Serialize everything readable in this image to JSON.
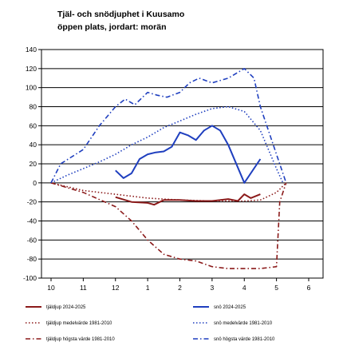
{
  "chart_data": {
    "type": "line",
    "title": "Tjäl- och snödjuphet i Kuusamo",
    "subtitle": "öppen plats, jordart: morän",
    "categories": [
      "10",
      "11",
      "12",
      "1",
      "2",
      "3",
      "4",
      "5",
      "6"
    ],
    "ylim": [
      -100,
      140
    ],
    "yticks": [
      140,
      120,
      100,
      80,
      60,
      40,
      20,
      0,
      -20,
      -40,
      -60,
      -80,
      -100
    ],
    "xlim": [
      0,
      8
    ],
    "grid": "horizontal",
    "legend_position": "bottom",
    "series": [
      {
        "name": "tjäldjup 2024-2025",
        "color": "#8b1a1a",
        "dash": "solid",
        "x": [
          2.0,
          2.5,
          3.0,
          3.2,
          3.5,
          4.0,
          4.5,
          5.0,
          5.5,
          5.8,
          6.0,
          6.2,
          6.5
        ],
        "y": [
          -15,
          -20,
          -21,
          -23,
          -18,
          -18,
          -19,
          -19,
          -17,
          -19,
          -12,
          -16,
          -12
        ]
      },
      {
        "name": "snö 2024-2025",
        "color": "#1f3fbf",
        "dash": "solid",
        "x": [
          2.0,
          2.25,
          2.5,
          2.75,
          3.0,
          3.25,
          3.5,
          3.75,
          4.0,
          4.25,
          4.5,
          4.75,
          5.0,
          5.25,
          5.5,
          6.0,
          6.5
        ],
        "y": [
          13,
          5,
          10,
          25,
          30,
          32,
          33,
          38,
          53,
          50,
          45,
          55,
          60,
          55,
          40,
          0,
          25
        ]
      },
      {
        "name": "tjäldjup medelvärde 1981-2010",
        "color": "#8b1a1a",
        "dash": "dot",
        "x": [
          0.0,
          1.0,
          2.0,
          3.0,
          4.0,
          5.0,
          6.0,
          6.5,
          7.0,
          7.3
        ],
        "y": [
          0,
          -8,
          -12,
          -16,
          -18,
          -19,
          -19,
          -18,
          -10,
          0
        ]
      },
      {
        "name": "snö medelvärde 1981-2010",
        "color": "#1f3fbf",
        "dash": "dot",
        "x": [
          0.0,
          0.5,
          1.0,
          1.5,
          2.0,
          2.5,
          3.0,
          3.5,
          4.0,
          4.5,
          5.0,
          5.5,
          6.0,
          6.5,
          7.0,
          7.2
        ],
        "y": [
          0,
          8,
          15,
          22,
          30,
          40,
          48,
          58,
          65,
          72,
          78,
          80,
          75,
          55,
          15,
          0
        ]
      },
      {
        "name": "tjäldjup högsta värde 1981-2010",
        "color": "#8b1a1a",
        "dash": "dashdot",
        "x": [
          0.0,
          1.0,
          2.0,
          2.5,
          3.0,
          3.5,
          4.0,
          4.5,
          5.0,
          5.5,
          6.0,
          6.5,
          7.0,
          7.1,
          7.3
        ],
        "y": [
          0,
          -10,
          -25,
          -40,
          -60,
          -75,
          -80,
          -82,
          -88,
          -90,
          -90,
          -90,
          -88,
          -20,
          0
        ]
      },
      {
        "name": "snö högsta värde 1981-2010",
        "color": "#1f3fbf",
        "dash": "dashdot",
        "x": [
          0.0,
          0.3,
          1.0,
          1.5,
          2.0,
          2.3,
          2.6,
          3.0,
          3.3,
          3.6,
          4.0,
          4.3,
          4.6,
          5.0,
          5.5,
          6.0,
          6.3,
          6.5,
          7.0,
          7.3
        ],
        "y": [
          0,
          20,
          35,
          60,
          80,
          88,
          82,
          95,
          92,
          90,
          95,
          105,
          110,
          105,
          110,
          120,
          110,
          80,
          30,
          0
        ]
      }
    ]
  }
}
